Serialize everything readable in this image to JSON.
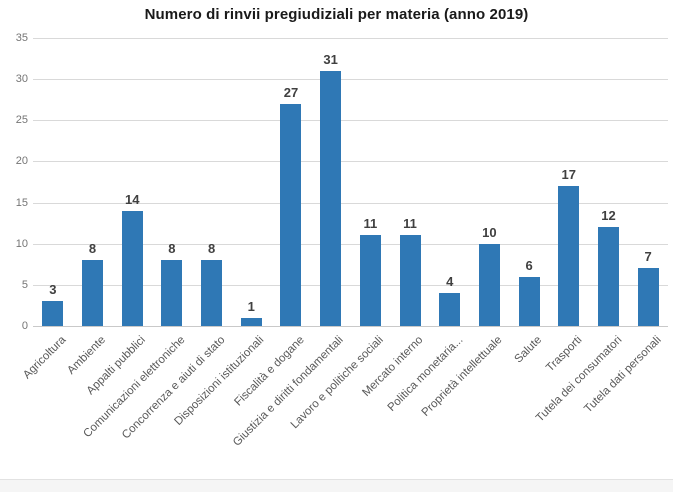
{
  "chart_data": {
    "type": "bar",
    "title": "Numero di rinvii pregiudiziali per materia (anno 2019)",
    "categories": [
      "Agricoltura",
      "Ambiente",
      "Appalti pubblici",
      "Comunicazioni elettroniche",
      "Concorrenza e aiuti di stato",
      "Disposizioni istituzionali",
      "Fiscalità e dogane",
      "Giustizia e diritti fondamentali",
      "Lavoro e politiche sociali",
      "Mercato interno",
      "Politica monetaria...",
      "Proprietà intellettuale",
      "Salute",
      "Trasporti",
      "Tutela dei consumatori",
      "Tutela dati personali"
    ],
    "values": [
      3,
      8,
      14,
      8,
      8,
      1,
      27,
      31,
      11,
      11,
      4,
      10,
      6,
      17,
      12,
      7
    ],
    "xlabel": "",
    "ylabel": "",
    "ylim": [
      0,
      35
    ],
    "yticks": [
      0,
      5,
      10,
      15,
      20,
      25,
      30,
      35
    ],
    "grid": true,
    "legend": false,
    "data_labels": true,
    "colors": {
      "bar": "#2F78B5",
      "grid": "#d9d9d9",
      "axis": "#c9c9c9",
      "y_tick_label": "#757575",
      "data_label": "#404040",
      "x_label": "#595959",
      "title": "#1a1a1a"
    }
  }
}
